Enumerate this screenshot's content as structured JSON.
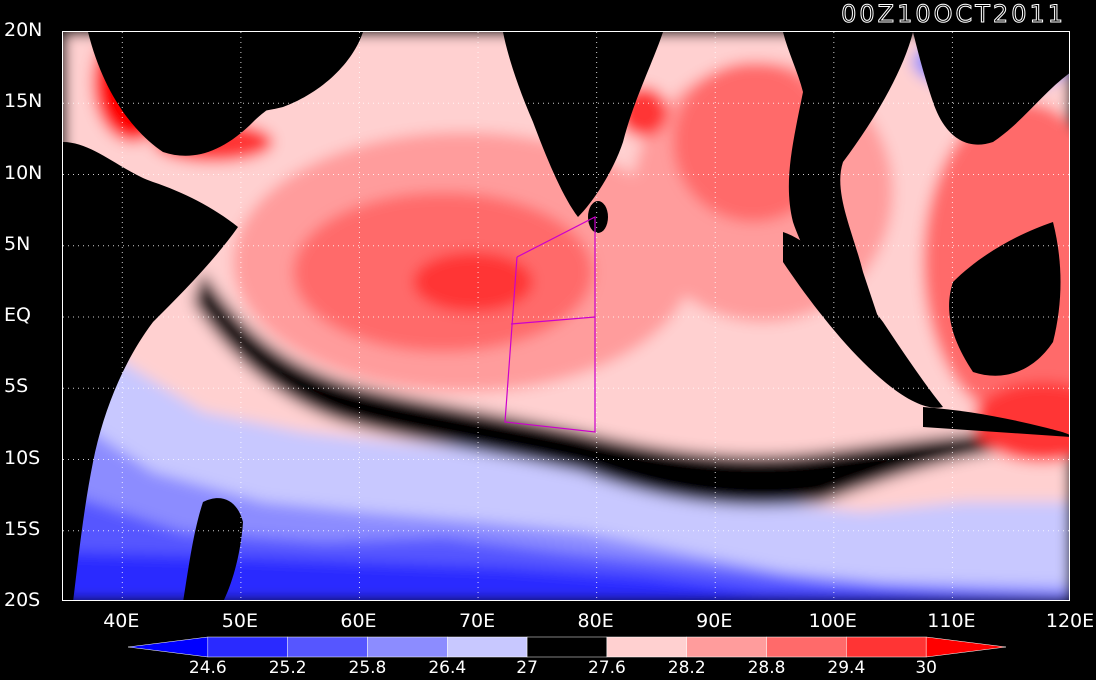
{
  "timestamp": "00Z10OCT2011",
  "lat_labels": [
    "20N",
    "15N",
    "10N",
    "5N",
    "EQ",
    "5S",
    "10S",
    "15S",
    "20S"
  ],
  "lon_labels": [
    "40E",
    "50E",
    "60E",
    "70E",
    "80E",
    "90E",
    "100E",
    "110E",
    "120E"
  ],
  "colorbar": {
    "labels": [
      "24.6",
      "25.2",
      "25.8",
      "26.4",
      "27",
      "27.6",
      "28.2",
      "28.8",
      "29.4",
      "30"
    ],
    "colors": [
      "#0000ff",
      "#2a2aff",
      "#5656ff",
      "#8c8cff",
      "#c8c8ff",
      "#000000",
      "#ffd0d0",
      "#ff9c9c",
      "#ff6a6a",
      "#ff3434",
      "#ff0000"
    ]
  },
  "map": {
    "lon_range": [
      35,
      120
    ],
    "lat_range": [
      -20,
      20
    ],
    "gridlines": "dotted",
    "overlay_color": "#cc00cc"
  }
}
